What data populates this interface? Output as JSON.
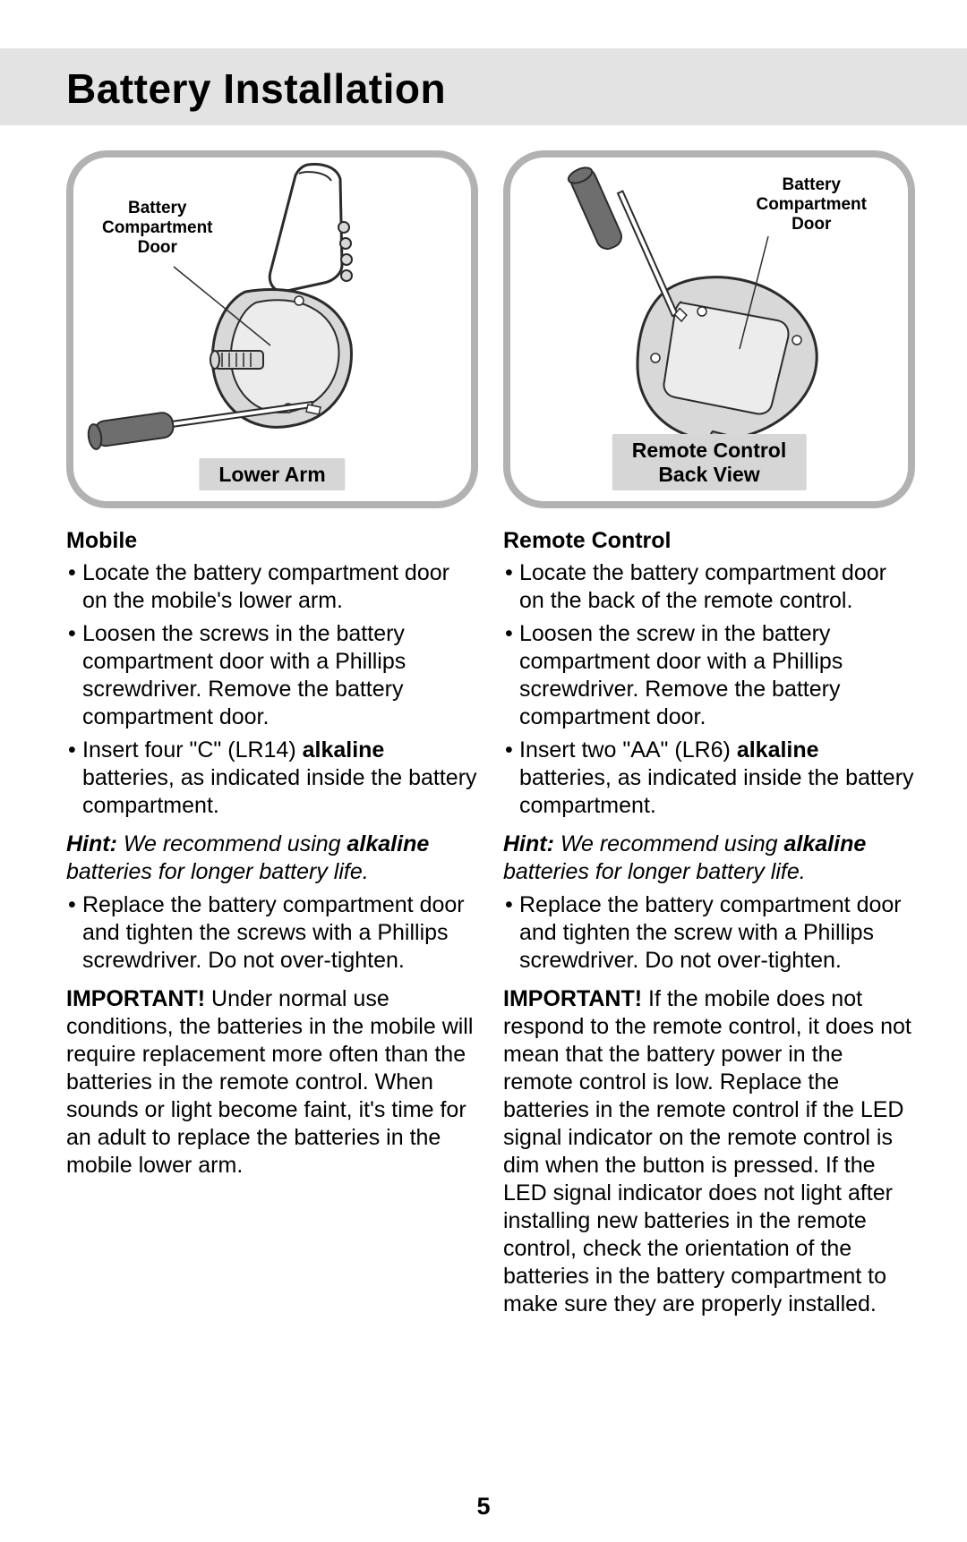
{
  "page": {
    "title": "Battery Installation",
    "page_number": "5"
  },
  "left": {
    "fig_callout": "Battery\nCompartment\nDoor",
    "fig_caption": "Lower Arm",
    "heading": "Mobile",
    "bullets_before_hint": [
      "Locate the battery compartment door on the mobile's lower arm.",
      "Loosen the screws in the battery compartment door with a Phillips screwdriver. Remove the battery compartment door.",
      "Insert four \"C\" (LR14) <b>alkaline</b> batteries, as indicated inside the battery compartment."
    ],
    "hint_label": "Hint:",
    "hint_text_1": " We recommend using ",
    "hint_bold": "alkaline",
    "hint_text_2": " batteries for longer battery life.",
    "bullets_after_hint": [
      "Replace the battery compartment door and tighten the screws with a Phillips screwdriver. Do not over-tighten."
    ],
    "important_label": "IMPORTANT!",
    "important_text": " Under normal use conditions, the batteries in the mobile will require replacement more often than the batteries in the remote control. When sounds or light become faint, it's time for an adult to replace the batteries in the mobile lower arm."
  },
  "right": {
    "fig_callout": "Battery\nCompartment\nDoor",
    "fig_caption": "Remote Control\nBack View",
    "heading": "Remote Control",
    "bullets_before_hint": [
      "Locate the battery compartment door on the back of the remote control.",
      "Loosen the screw in the battery compartment door with a Phillips screwdriver. Remove the battery compartment door.",
      "Insert two \"AA\" (LR6) <b>alkaline</b> batteries, as indicated inside the battery compartment."
    ],
    "hint_label": "Hint:",
    "hint_text_1": " We recommend using ",
    "hint_bold": "alkaline",
    "hint_text_2": " batteries for longer battery life.",
    "bullets_after_hint": [
      "Replace the battery compartment door and tighten the screw with a Phillips screwdriver. Do not over-tighten."
    ],
    "important_label": "IMPORTANT!",
    "important_text": " If the mobile does not respond to the remote control, it does not mean that the battery power in the remote control is low. Replace the batteries in the remote control if the LED signal indicator on the remote control is dim when the button is pressed. If the LED signal indicator does not light after installing new batteries in the remote control, check the orientation of the batteries in the battery compartment to make sure they are properly installed."
  },
  "style": {
    "title_bg": "#e3e3e3",
    "border_color": "#b2b2b2",
    "caption_bg": "#d6d6d6",
    "fig_stroke": "#2b2b2b",
    "fig_fill_light": "#d8d8d8",
    "fig_fill_mid": "#a9a9a9",
    "fig_fill_dark": "#6e6e6e"
  }
}
